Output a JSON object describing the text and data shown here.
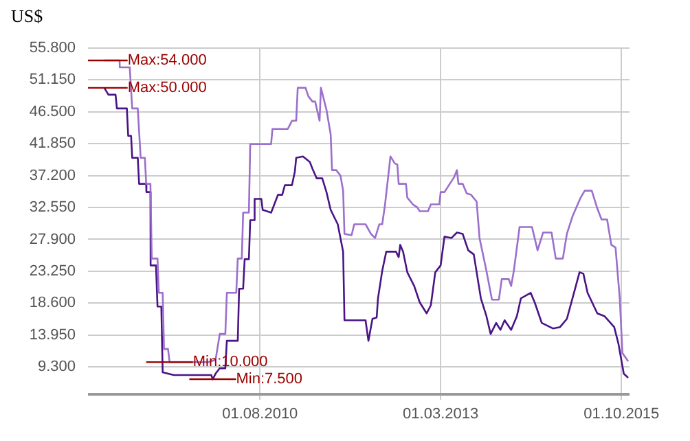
{
  "chart_data": {
    "type": "line",
    "ylabel": "US$",
    "xlim": [
      "2008-02-15",
      "2015-11-12"
    ],
    "xticks": [
      {
        "value": "2010-08-01",
        "label": "01.08.2010"
      },
      {
        "value": "2013-03-01",
        "label": "01.03.2013"
      },
      {
        "value": "2015-10-01",
        "label": "01.10.2015"
      }
    ],
    "ylim": [
      5.3,
      55.8
    ],
    "yticks": [
      {
        "value": 9.3,
        "label": "9.300"
      },
      {
        "value": 13.95,
        "label": "13.950"
      },
      {
        "value": 18.6,
        "label": "18.600"
      },
      {
        "value": 23.25,
        "label": "23.250"
      },
      {
        "value": 27.9,
        "label": "27.900"
      },
      {
        "value": 32.55,
        "label": "32.550"
      },
      {
        "value": 37.2,
        "label": "37.200"
      },
      {
        "value": 41.85,
        "label": "41.850"
      },
      {
        "value": 46.5,
        "label": "46.500"
      },
      {
        "value": 51.15,
        "label": "51.150"
      },
      {
        "value": 55.8,
        "label": "55.800"
      }
    ],
    "grid": true,
    "series": [
      {
        "color": "#9b6fcc",
        "x": [
          "2008-05-10",
          "2008-07-29",
          "2008-07-30",
          "2008-09-20",
          "2008-10-03",
          "2008-11-01",
          "2008-11-16",
          "2008-12-08",
          "2008-12-15",
          "2009-01-06",
          "2009-01-13",
          "2009-02-12",
          "2009-02-19",
          "2009-03-11",
          "2009-03-18",
          "2009-04-08",
          "2009-04-16",
          "2009-11-06",
          "2009-12-12",
          "2010-01-03",
          "2010-02-01",
          "2010-02-09",
          "2010-03-30",
          "2010-04-07",
          "2010-04-28",
          "2010-05-05",
          "2010-06-04",
          "2010-06-11",
          "2010-09-28",
          "2010-10-05",
          "2010-12-24",
          "2011-01-15",
          "2011-02-06",
          "2011-02-14",
          "2011-03-27",
          "2011-04-10",
          "2011-05-02",
          "2011-05-16",
          "2011-06-08",
          "2011-06-15",
          "2011-07-14",
          "2011-08-05",
          "2011-08-12",
          "2011-09-03",
          "2011-09-25",
          "2011-10-09",
          "2011-10-16",
          "2011-11-22",
          "2011-12-06",
          "2012-02-03",
          "2012-03-02",
          "2012-03-24",
          "2012-04-15",
          "2012-04-30",
          "2012-05-14",
          "2012-06-12",
          "2012-07-04",
          "2012-07-18",
          "2012-07-25",
          "2012-09-01",
          "2012-09-08",
          "2012-10-07",
          "2012-10-29",
          "2012-11-12",
          "2012-12-25",
          "2013-01-09",
          "2013-02-22",
          "2013-03-01",
          "2013-03-21",
          "2013-05-11",
          "2013-05-25",
          "2013-06-02",
          "2013-06-24",
          "2013-07-15",
          "2013-08-07",
          "2013-09-05",
          "2013-09-20",
          "2013-10-26",
          "2013-11-24",
          "2013-12-30",
          "2014-01-14",
          "2014-02-20",
          "2014-03-04",
          "2014-03-18",
          "2014-04-17",
          "2014-06-21",
          "2014-07-20",
          "2014-08-18",
          "2014-10-01",
          "2014-10-23",
          "2014-11-29",
          "2014-12-20",
          "2015-01-19",
          "2015-03-02",
          "2015-03-23",
          "2015-04-29",
          "2015-05-28",
          "2015-06-19",
          "2015-07-18",
          "2015-08-09",
          "2015-08-31",
          "2015-09-22",
          "2015-10-06",
          "2015-11-05"
        ],
        "values": [
          54.0,
          54.0,
          53.0,
          53.0,
          47.0,
          47.0,
          39.8,
          39.8,
          36.0,
          36.0,
          25.1,
          25.1,
          20.1,
          20.1,
          11.9,
          11.9,
          10.0,
          10.0,
          10.3,
          14.1,
          14.1,
          20.1,
          20.1,
          25.1,
          25.1,
          31.8,
          31.8,
          41.8,
          41.8,
          44.0,
          44.0,
          45.2,
          45.2,
          50.0,
          50.0,
          48.8,
          48.0,
          48.0,
          45.2,
          50.0,
          46.8,
          43.2,
          38.0,
          38.0,
          37.2,
          35.0,
          28.7,
          28.5,
          30.1,
          30.1,
          28.7,
          28.1,
          30.1,
          30.1,
          32.8,
          40.0,
          39.0,
          38.8,
          36.0,
          36.0,
          34.0,
          33.0,
          32.6,
          32.0,
          32.0,
          33.0,
          33.0,
          34.8,
          34.8,
          37.0,
          38.0,
          36.0,
          36.0,
          34.6,
          34.4,
          33.4,
          28.1,
          23.3,
          19.1,
          19.1,
          22.1,
          22.1,
          21.1,
          23.3,
          29.7,
          29.7,
          26.3,
          28.9,
          28.9,
          25.1,
          25.1,
          28.7,
          31.3,
          34.0,
          35.0,
          35.0,
          32.4,
          30.8,
          30.8,
          27.1,
          26.7,
          19.3,
          11.3,
          10.1
        ]
      },
      {
        "color": "#4a1486",
        "x": [
          "2008-05-10",
          "2008-06-01",
          "2008-07-08",
          "2008-07-15",
          "2008-09-05",
          "2008-09-12",
          "2008-09-27",
          "2008-10-03",
          "2008-11-01",
          "2008-11-08",
          "2008-12-15",
          "2008-12-16",
          "2009-01-06",
          "2009-01-07",
          "2009-02-04",
          "2009-02-12",
          "2009-03-04",
          "2009-03-11",
          "2009-05-08",
          "2009-11-20",
          "2009-11-27",
          "2009-12-12",
          "2010-01-03",
          "2010-02-01",
          "2010-02-09",
          "2010-04-07",
          "2010-04-14",
          "2010-05-05",
          "2010-05-13",
          "2010-06-04",
          "2010-06-11",
          "2010-07-03",
          "2010-07-04",
          "2010-08-08",
          "2010-08-15",
          "2010-09-28",
          "2010-10-12",
          "2010-11-03",
          "2010-11-25",
          "2010-12-09",
          "2011-01-15",
          "2011-01-30",
          "2011-02-06",
          "2011-03-13",
          "2011-04-18",
          "2011-05-02",
          "2011-05-24",
          "2011-06-22",
          "2011-07-14",
          "2011-08-05",
          "2011-09-11",
          "2011-10-09",
          "2011-10-16",
          "2012-02-03",
          "2012-02-18",
          "2012-03-10",
          "2012-04-01",
          "2012-04-08",
          "2012-04-30",
          "2012-05-21",
          "2012-07-11",
          "2012-07-25",
          "2012-08-02",
          "2012-08-17",
          "2012-09-08",
          "2012-10-14",
          "2012-11-12",
          "2012-12-18",
          "2013-01-09",
          "2013-02-01",
          "2013-03-01",
          "2013-03-21",
          "2013-04-27",
          "2013-05-25",
          "2013-06-24",
          "2013-07-23",
          "2013-08-21",
          "2013-09-27",
          "2013-10-26",
          "2013-11-17",
          "2013-12-16",
          "2014-01-07",
          "2014-01-29",
          "2014-03-04",
          "2014-04-03",
          "2014-04-24",
          "2014-06-14",
          "2014-07-05",
          "2014-08-11",
          "2014-10-08",
          "2014-11-14",
          "2014-12-20",
          "2015-01-26",
          "2015-02-24",
          "2015-03-16",
          "2015-04-07",
          "2015-05-28",
          "2015-07-04",
          "2015-08-24",
          "2015-09-15",
          "2015-10-13",
          "2015-11-05"
        ],
        "values": [
          50.0,
          49.0,
          49.0,
          47.0,
          47.0,
          43.0,
          43.0,
          39.8,
          39.8,
          36.0,
          36.0,
          34.8,
          34.8,
          24.1,
          24.1,
          18.1,
          18.1,
          8.5,
          8.1,
          8.1,
          7.5,
          8.3,
          9.1,
          9.1,
          13.1,
          13.1,
          20.7,
          20.7,
          25.0,
          25.0,
          30.7,
          30.7,
          33.8,
          33.8,
          32.2,
          31.8,
          32.8,
          34.4,
          34.4,
          35.8,
          35.8,
          37.8,
          39.8,
          40.0,
          39.2,
          38.2,
          36.8,
          36.8,
          34.8,
          32.2,
          30.1,
          26.1,
          16.1,
          16.1,
          13.1,
          16.3,
          16.5,
          19.3,
          23.3,
          26.1,
          26.1,
          25.3,
          27.1,
          26.1,
          23.1,
          21.1,
          18.7,
          17.1,
          18.3,
          23.1,
          24.1,
          28.3,
          28.1,
          28.9,
          28.7,
          26.3,
          25.7,
          19.3,
          16.7,
          14.1,
          15.7,
          14.7,
          16.1,
          14.7,
          16.7,
          19.3,
          20.1,
          18.7,
          15.7,
          14.9,
          15.1,
          16.3,
          20.1,
          23.1,
          22.9,
          20.1,
          17.1,
          16.7,
          15.1,
          12.7,
          8.3,
          7.7
        ]
      }
    ],
    "annotations": [
      {
        "text": "Max:54.000",
        "x": "2008-05-10",
        "y": 54.0
      },
      {
        "text": "Max:50.000",
        "x": "2008-05-10",
        "y": 50.0
      },
      {
        "text": "Min:10.000",
        "x": "2009-04-16",
        "y": 10.0
      },
      {
        "text": "Min:7.500",
        "x": "2009-11-27",
        "y": 7.5
      }
    ]
  }
}
